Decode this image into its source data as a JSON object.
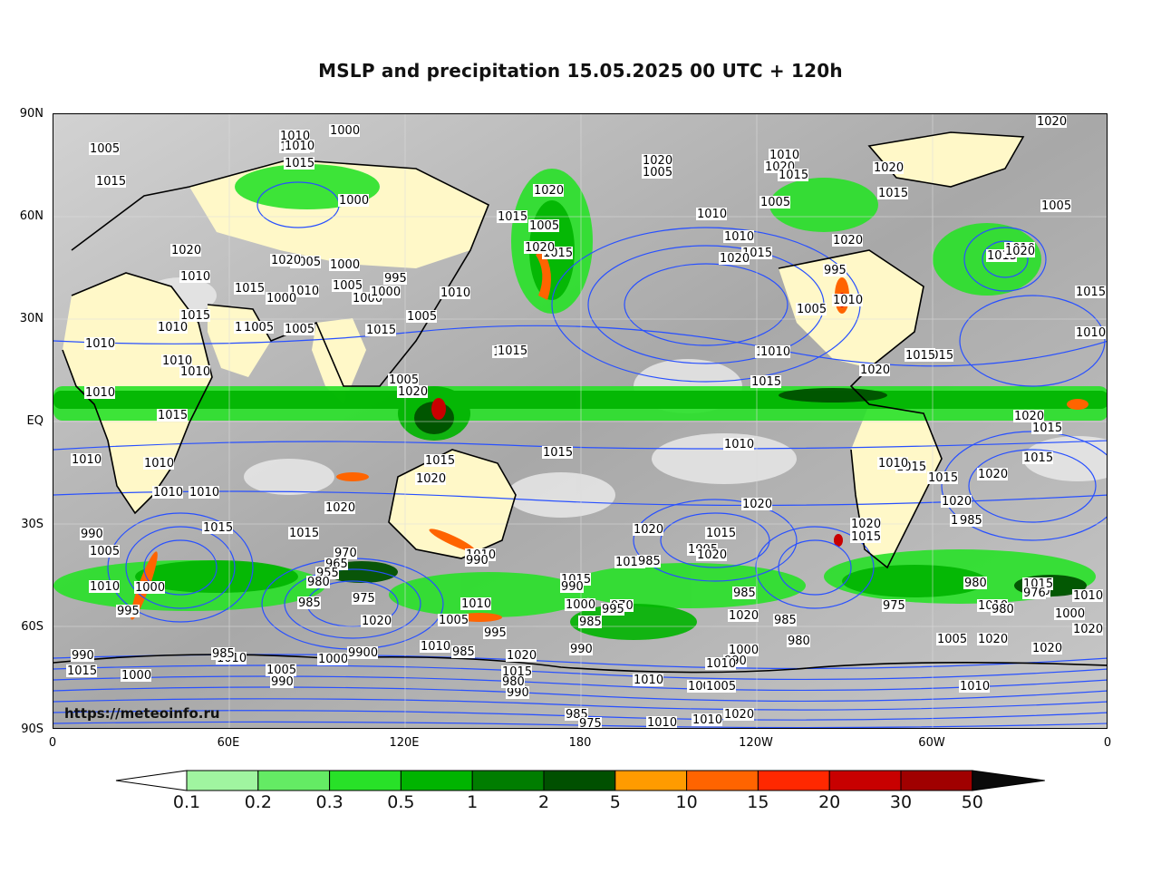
{
  "title": "MSLP and precipitation 15.05.2025 00 UTC + 120h",
  "watermark": "https://meteoinfo.ru",
  "lat_labels": [
    "90N",
    "60N",
    "30N",
    "EQ",
    "30S",
    "60S",
    "90S"
  ],
  "lon_labels": [
    "0",
    "60E",
    "120E",
    "180",
    "120W",
    "60W",
    "0"
  ],
  "colorbar": {
    "labels": [
      "0.1",
      "0.2",
      "0.3",
      "0.5",
      "1",
      "2",
      "5",
      "10",
      "15",
      "20",
      "30",
      "50"
    ],
    "colors": [
      "#ffffff",
      "#a0f5a0",
      "#64eb64",
      "#28e128",
      "#00b400",
      "#007d00",
      "#005000",
      "#ff9b00",
      "#ff6400",
      "#ff2800",
      "#c80000",
      "#a00000",
      "#0a0a0a"
    ]
  },
  "colors": {
    "isobar": "#2850ff",
    "coast": "#000000",
    "land_dry": "#fff8c8",
    "cloud_gray": "#b4b4b4"
  },
  "isobar_labels": [
    {
      "text": "1020"
    },
    {
      "text": "1005"
    },
    {
      "text": "1010"
    },
    {
      "text": "1000"
    },
    {
      "text": "1015"
    },
    {
      "text": "1015"
    },
    {
      "text": "1020"
    },
    {
      "text": "1005"
    },
    {
      "text": "1010"
    },
    {
      "text": "1015"
    },
    {
      "text": "1000"
    },
    {
      "text": "1020"
    },
    {
      "text": "1020"
    },
    {
      "text": "1010"
    },
    {
      "text": "1015"
    },
    {
      "text": "1015"
    },
    {
      "text": "1020"
    },
    {
      "text": "1005"
    },
    {
      "text": "1010"
    },
    {
      "text": "1015"
    },
    {
      "text": "1020"
    },
    {
      "text": "1015"
    },
    {
      "text": "1020"
    },
    {
      "text": "1010"
    },
    {
      "text": "1005"
    },
    {
      "text": "1010"
    },
    {
      "text": "1015"
    },
    {
      "text": "1020"
    },
    {
      "text": "1015"
    },
    {
      "text": "1005"
    },
    {
      "text": "1020"
    },
    {
      "text": "1010"
    },
    {
      "text": "1015"
    },
    {
      "text": "1005"
    },
    {
      "text": "1010"
    },
    {
      "text": "1020"
    },
    {
      "text": "1000"
    },
    {
      "text": "995"
    },
    {
      "text": "1005"
    },
    {
      "text": "1000"
    },
    {
      "text": "1005"
    },
    {
      "text": "1010"
    },
    {
      "text": "1000"
    },
    {
      "text": "1000"
    },
    {
      "text": "995"
    },
    {
      "text": "1010"
    },
    {
      "text": "1020"
    },
    {
      "text": "1015"
    },
    {
      "text": "1010"
    },
    {
      "text": "1005"
    },
    {
      "text": "1005"
    },
    {
      "text": "1010"
    },
    {
      "text": "1005"
    },
    {
      "text": "1010"
    },
    {
      "text": "1015"
    },
    {
      "text": "1015"
    },
    {
      "text": "1010"
    },
    {
      "text": "1010"
    },
    {
      "text": "1005"
    },
    {
      "text": "1010"
    },
    {
      "text": "1010"
    },
    {
      "text": "1010"
    },
    {
      "text": "1015"
    },
    {
      "text": "1010"
    },
    {
      "text": "1015"
    },
    {
      "text": "1020"
    },
    {
      "text": "1010"
    },
    {
      "text": "1010"
    },
    {
      "text": "1010"
    },
    {
      "text": "1010"
    },
    {
      "text": "1010"
    },
    {
      "text": "1015"
    },
    {
      "text": "1015"
    },
    {
      "text": "1020"
    },
    {
      "text": "1020"
    },
    {
      "text": "1015"
    },
    {
      "text": "1015"
    },
    {
      "text": "1010"
    },
    {
      "text": "1015"
    },
    {
      "text": "1010"
    },
    {
      "text": "1020"
    },
    {
      "text": "1015"
    },
    {
      "text": "1020"
    },
    {
      "text": "1015"
    },
    {
      "text": "1015"
    },
    {
      "text": "1020"
    },
    {
      "text": "1015"
    },
    {
      "text": "1010"
    },
    {
      "text": "1020"
    },
    {
      "text": "1010"
    },
    {
      "text": "1005"
    },
    {
      "text": "1015"
    },
    {
      "text": "1020"
    },
    {
      "text": "1015"
    },
    {
      "text": "1020"
    },
    {
      "text": "1015"
    },
    {
      "text": "1010"
    },
    {
      "text": "1015"
    },
    {
      "text": "1005"
    },
    {
      "text": "1020"
    },
    {
      "text": "1010"
    },
    {
      "text": "1020"
    },
    {
      "text": "1010"
    },
    {
      "text": "1015"
    },
    {
      "text": "1020"
    },
    {
      "text": "1015"
    },
    {
      "text": "1010"
    },
    {
      "text": "1020"
    },
    {
      "text": "1010"
    },
    {
      "text": "1000"
    },
    {
      "text": "990"
    },
    {
      "text": "985"
    },
    {
      "text": "980"
    },
    {
      "text": "1010"
    },
    {
      "text": "1005"
    },
    {
      "text": "1000"
    },
    {
      "text": "995"
    },
    {
      "text": "990"
    },
    {
      "text": "970"
    },
    {
      "text": "965"
    },
    {
      "text": "955"
    },
    {
      "text": "980"
    },
    {
      "text": "985"
    },
    {
      "text": "975"
    },
    {
      "text": "1020"
    },
    {
      "text": "1010"
    },
    {
      "text": "1005"
    },
    {
      "text": "995"
    },
    {
      "text": "990"
    },
    {
      "text": "985"
    },
    {
      "text": "970"
    },
    {
      "text": "995"
    },
    {
      "text": "985"
    },
    {
      "text": "990"
    },
    {
      "text": "985"
    },
    {
      "text": "1020"
    },
    {
      "text": "985"
    },
    {
      "text": "980"
    },
    {
      "text": "1000"
    },
    {
      "text": "990"
    },
    {
      "text": "975"
    },
    {
      "text": "980"
    },
    {
      "text": "980"
    },
    {
      "text": "1015"
    },
    {
      "text": "976"
    },
    {
      "text": "1000"
    },
    {
      "text": "1010"
    },
    {
      "text": "1020"
    },
    {
      "text": "1005"
    },
    {
      "text": "990"
    },
    {
      "text": "1015"
    },
    {
      "text": "1000"
    },
    {
      "text": "1010"
    },
    {
      "text": "985"
    },
    {
      "text": "1005"
    },
    {
      "text": "990"
    },
    {
      "text": "1020"
    },
    {
      "text": "1000"
    },
    {
      "text": "990"
    },
    {
      "text": "1010"
    },
    {
      "text": "985"
    },
    {
      "text": "1020"
    },
    {
      "text": "1015"
    },
    {
      "text": "990"
    },
    {
      "text": "980"
    },
    {
      "text": "985"
    },
    {
      "text": "975"
    },
    {
      "text": "1000"
    },
    {
      "text": "1010"
    },
    {
      "text": "1010"
    },
    {
      "text": "1020"
    },
    {
      "text": "1005"
    },
    {
      "text": "1010"
    }
  ]
}
